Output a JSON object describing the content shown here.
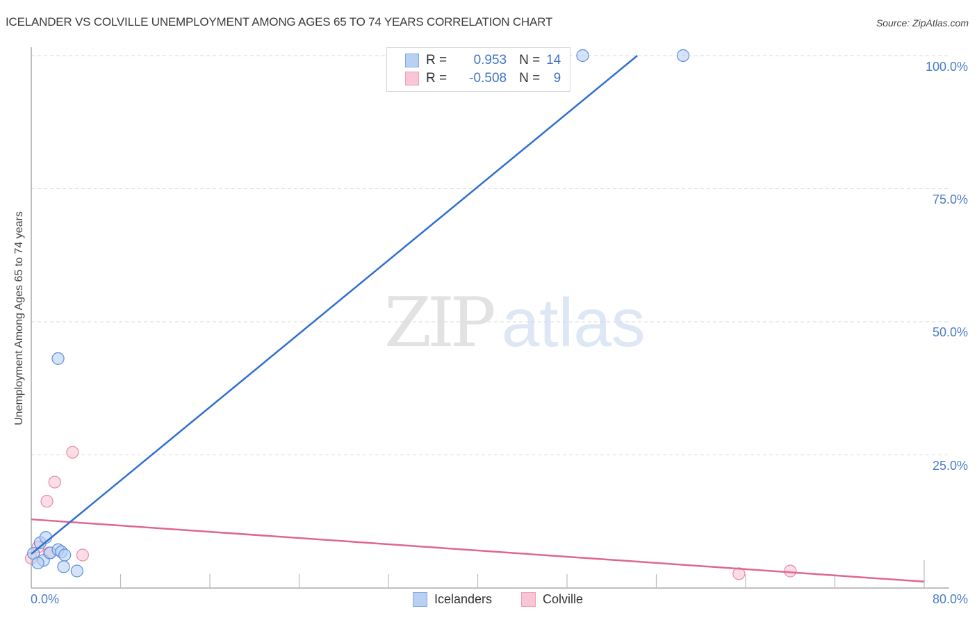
{
  "header": {
    "title": "ICELANDER VS COLVILLE UNEMPLOYMENT AMONG AGES 65 TO 74 YEARS CORRELATION CHART",
    "source": "Source: ZipAtlas.com"
  },
  "watermark": {
    "zip": "ZIP",
    "atlas": "atlas"
  },
  "axes": {
    "ylabel": "Unemployment Among Ages 65 to 74 years",
    "yticks": [
      "100.0%",
      "75.0%",
      "50.0%",
      "25.0%"
    ],
    "xticks": [
      "0.0%",
      "80.0%"
    ]
  },
  "legend": {
    "rows": [
      {
        "r_label": "R =",
        "r_value": "0.953",
        "n_label": "N =",
        "n_value": "14"
      },
      {
        "r_label": "R =",
        "r_value": "-0.508",
        "n_label": "N =",
        "n_value": "9"
      }
    ],
    "bottom": [
      "Icelanders",
      "Colville"
    ]
  },
  "colors": {
    "blue_fill": "#b8d1f3",
    "blue_stroke": "#5b8fd9",
    "blue_line": "#2f6fd0",
    "pink_fill": "#f8c6d4",
    "pink_stroke": "#e88aa6",
    "pink_line": "#e06590",
    "tick_text": "#4a7cc9"
  },
  "chart_data": {
    "type": "scatter",
    "title": "ICELANDER VS COLVILLE UNEMPLOYMENT AMONG AGES 65 TO 74 YEARS CORRELATION CHART",
    "xlabel": "",
    "ylabel": "Unemployment Among Ages 65 to 74 years",
    "xlim": [
      0,
      80
    ],
    "ylim": [
      0,
      100
    ],
    "x_ticks": [
      "0.0%",
      "80.0%"
    ],
    "y_ticks": [
      "25.0%",
      "50.0%",
      "75.0%",
      "100.0%"
    ],
    "grid": "horizontal dashed",
    "legend_position": "top-center and bottom",
    "series": [
      {
        "name": "Icelanders",
        "r": 0.953,
        "n": 14,
        "points": [
          [
            0.2,
            6.5
          ],
          [
            0.8,
            8.5
          ],
          [
            1.3,
            9.5
          ],
          [
            1.1,
            5.2
          ],
          [
            1.7,
            6.6
          ],
          [
            2.4,
            7.2
          ],
          [
            2.7,
            6.8
          ],
          [
            3.0,
            6.2
          ],
          [
            2.9,
            4.0
          ],
          [
            4.1,
            3.2
          ],
          [
            0.6,
            4.7
          ],
          [
            2.4,
            43.1
          ],
          [
            49.4,
            100.0
          ],
          [
            58.4,
            100.0
          ]
        ],
        "trendline": {
          "x0": 0,
          "y0": 6.4,
          "x1": 54.3,
          "y1": 100
        }
      },
      {
        "name": "Colville",
        "r": -0.508,
        "n": 9,
        "points": [
          [
            0.0,
            5.6
          ],
          [
            0.6,
            7.7
          ],
          [
            1.6,
            6.6
          ],
          [
            1.4,
            16.3
          ],
          [
            2.1,
            19.9
          ],
          [
            3.7,
            25.5
          ],
          [
            4.6,
            6.2
          ],
          [
            63.4,
            2.7
          ],
          [
            68.0,
            3.2
          ]
        ],
        "trendline": {
          "x0": 0,
          "y0": 12.9,
          "x1": 80,
          "y1": 1.2
        }
      }
    ]
  }
}
